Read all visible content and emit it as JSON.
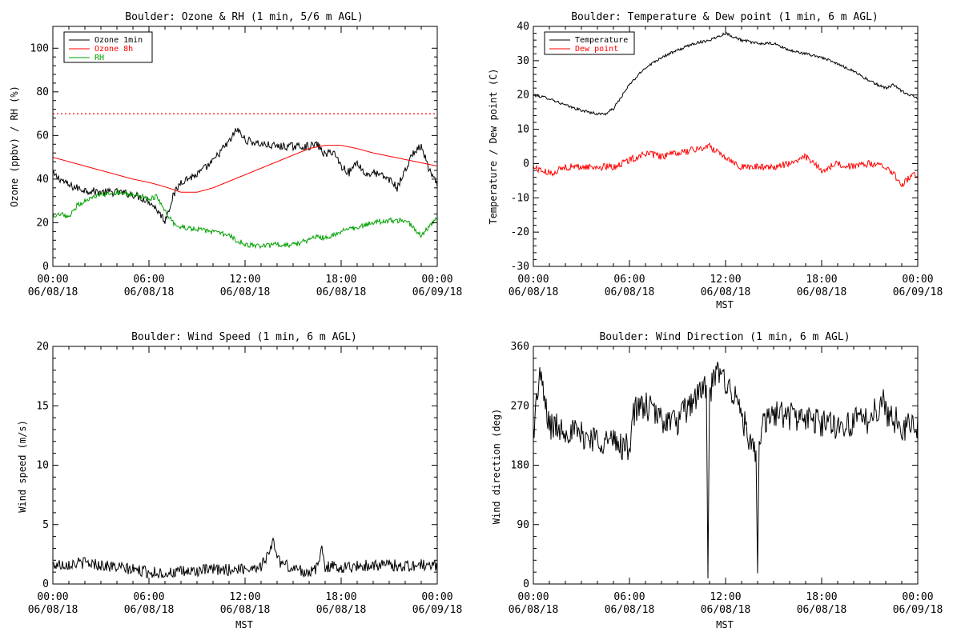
{
  "chart_data": [
    {
      "type": "line",
      "title": "Boulder: Ozone & RH (1 min, 5/6 m AGL)",
      "xlabel": "",
      "ylabel": "Ozone (ppbv) / RH (%)",
      "xlim": [
        "06/08/18 00:00",
        "06/09/18 00:00"
      ],
      "xticks": [
        {
          "time": "00:00",
          "date": "06/08/18"
        },
        {
          "time": "06:00",
          "date": "06/08/18"
        },
        {
          "time": "12:00",
          "date": "06/08/18"
        },
        {
          "time": "18:00",
          "date": "06/08/18"
        },
        {
          "time": "00:00",
          "date": "06/09/18"
        }
      ],
      "ylim": [
        0,
        110
      ],
      "yticks": [
        0,
        20,
        40,
        60,
        80,
        100
      ],
      "legend": "top-left",
      "reference_lines": [
        {
          "y": 70,
          "color": "#ff0000",
          "style": "dotted"
        }
      ],
      "series": [
        {
          "name": "Ozone 1min",
          "color": "#000000",
          "noise": 1.8,
          "x": [
            0,
            0.5,
            1,
            2,
            3,
            4,
            5,
            6,
            6.5,
            7,
            7.5,
            8,
            9,
            10,
            10.5,
            11,
            11.5,
            12,
            12.5,
            13,
            14,
            15,
            16,
            16.5,
            17,
            17.5,
            18,
            18.5,
            19,
            19.5,
            20,
            21,
            21.5,
            22,
            22.5,
            23,
            23.5,
            24
          ],
          "values": [
            42,
            40,
            37,
            35,
            34,
            34,
            33,
            30,
            26,
            21,
            32,
            39,
            42,
            48,
            53,
            57,
            63,
            58,
            57,
            56,
            55,
            55,
            55,
            56,
            51,
            53,
            46,
            43,
            48,
            42,
            43,
            40,
            36,
            44,
            52,
            55,
            44,
            37
          ]
        },
        {
          "name": "Ozone 8h",
          "color": "#ff0000",
          "noise": 0,
          "x": [
            0,
            1,
            2,
            3,
            4,
            5,
            6,
            7,
            8,
            9,
            10,
            11,
            12,
            13,
            14,
            15,
            16,
            17,
            18,
            19,
            20,
            21,
            22,
            23,
            24
          ],
          "values": [
            50,
            48,
            46,
            44,
            42,
            40,
            38.5,
            36.5,
            34,
            34,
            36,
            39,
            42,
            45,
            48,
            51,
            54,
            55.5,
            55.5,
            54,
            52,
            50.5,
            49,
            47.5,
            46
          ]
        },
        {
          "name": "RH",
          "color": "#00a000",
          "noise": 1.2,
          "x": [
            0,
            0.5,
            1,
            1.5,
            2,
            3,
            4,
            5,
            6,
            6.5,
            7,
            7.5,
            8,
            9,
            10,
            11,
            12,
            13,
            14,
            15,
            16,
            16.5,
            17,
            18,
            19,
            20,
            21,
            22,
            22.5,
            23,
            23.5,
            24
          ],
          "values": [
            22,
            24,
            22,
            28,
            30,
            33,
            34,
            33,
            31,
            32,
            25,
            20,
            18,
            17,
            16,
            14,
            10,
            9,
            10,
            10,
            12,
            14,
            13,
            16,
            18,
            20,
            21,
            21,
            18,
            14,
            18,
            22
          ]
        }
      ]
    },
    {
      "type": "line",
      "title": "Boulder: Temperature & Dew point (1 min, 6 m AGL)",
      "xlabel": "MST",
      "ylabel": "Temperature / Dew point (C)",
      "xlim": [
        "06/08/18 00:00",
        "06/09/18 00:00"
      ],
      "xticks": [
        {
          "time": "00:00",
          "date": "06/08/18"
        },
        {
          "time": "06:00",
          "date": "06/08/18"
        },
        {
          "time": "12:00",
          "date": "06/08/18"
        },
        {
          "time": "18:00",
          "date": "06/08/18"
        },
        {
          "time": "00:00",
          "date": "06/09/18"
        }
      ],
      "ylim": [
        -30,
        40
      ],
      "yticks": [
        -30,
        -20,
        -10,
        0,
        10,
        20,
        30,
        40
      ],
      "legend": "top-left",
      "series": [
        {
          "name": "Temperature",
          "color": "#000000",
          "noise": 0.4,
          "x": [
            0,
            0.5,
            1,
            2,
            3,
            4,
            4.5,
            5,
            6,
            7,
            8,
            9,
            10,
            11,
            12,
            12.5,
            13,
            14,
            15,
            16,
            17,
            18,
            19,
            20,
            21,
            22,
            22.5,
            23,
            24
          ],
          "values": [
            20,
            19.5,
            19,
            17,
            15.5,
            14.5,
            14.5,
            16,
            23,
            28,
            31,
            33,
            35,
            36,
            38,
            37,
            36,
            35,
            35,
            33,
            32,
            31,
            29,
            27,
            24,
            22,
            23,
            21,
            19
          ]
        },
        {
          "name": "Dew point",
          "color": "#ff0000",
          "noise": 1.0,
          "x": [
            0,
            0.5,
            1,
            2,
            3,
            4,
            5,
            6,
            7,
            8,
            9,
            10,
            11,
            12,
            13,
            14,
            15,
            16,
            17,
            18,
            19,
            20,
            21,
            22,
            22.5,
            23,
            23.5,
            24
          ],
          "values": [
            -1,
            -2,
            -3,
            -1,
            -1,
            -1,
            -1,
            1,
            3,
            2,
            3,
            4,
            5,
            2,
            -1,
            -1,
            -1,
            0,
            2,
            -2,
            0,
            -1,
            0,
            -1,
            -3,
            -6,
            -4,
            -3
          ]
        }
      ]
    },
    {
      "type": "line",
      "title": "Boulder: Wind Speed (1 min, 6 m AGL)",
      "xlabel": "MST",
      "ylabel": "Wind speed (m/s)",
      "xlim": [
        "06/08/18 00:00",
        "06/09/18 00:00"
      ],
      "xticks": [
        {
          "time": "00:00",
          "date": "06/08/18"
        },
        {
          "time": "06:00",
          "date": "06/08/18"
        },
        {
          "time": "12:00",
          "date": "06/08/18"
        },
        {
          "time": "18:00",
          "date": "06/08/18"
        },
        {
          "time": "00:00",
          "date": "06/09/18"
        }
      ],
      "ylim": [
        0,
        20
      ],
      "yticks": [
        0,
        5,
        10,
        15,
        20
      ],
      "legend": "none",
      "series": [
        {
          "color": "#000000",
          "noise": 0.5,
          "x": [
            0,
            1,
            2,
            3,
            4,
            5,
            6,
            7,
            8,
            9,
            10,
            11,
            12,
            13,
            13.8,
            14,
            14.2,
            15,
            16,
            16.5,
            16.8,
            17,
            18,
            19,
            20,
            21,
            22,
            23,
            24
          ],
          "values": [
            1.6,
            1.7,
            1.8,
            1.6,
            1.4,
            1.2,
            1.0,
            0.9,
            1.0,
            1.1,
            1.2,
            1.2,
            1.3,
            1.5,
            3.5,
            2.5,
            1.8,
            1.3,
            1.0,
            1.3,
            3.0,
            1.5,
            1.4,
            1.5,
            1.6,
            1.6,
            1.5,
            1.6,
            1.5
          ]
        }
      ]
    },
    {
      "type": "line",
      "title": "Boulder: Wind Direction (1 min, 6 m AGL)",
      "xlabel": "MST",
      "ylabel": "Wind direction (deg)",
      "xlim": [
        "06/08/18 00:00",
        "06/09/18 00:00"
      ],
      "xticks": [
        {
          "time": "00:00",
          "date": "06/08/18"
        },
        {
          "time": "06:00",
          "date": "06/08/18"
        },
        {
          "time": "12:00",
          "date": "06/08/18"
        },
        {
          "time": "18:00",
          "date": "06/08/18"
        },
        {
          "time": "00:00",
          "date": "06/09/18"
        }
      ],
      "ylim": [
        0,
        360
      ],
      "yticks": [
        0,
        90,
        180,
        270,
        360
      ],
      "legend": "none",
      "series": [
        {
          "color": "#000000",
          "noise": 22,
          "x": [
            0,
            0.4,
            0.6,
            1,
            2,
            3,
            4,
            5,
            6,
            6.2,
            7,
            8,
            9,
            10,
            10.8,
            10.9,
            11,
            11.5,
            12,
            13,
            13.5,
            13.9,
            14,
            14.1,
            15,
            16,
            17,
            18,
            19,
            20,
            21,
            21.8,
            22,
            23,
            24
          ],
          "values": [
            230,
            320,
            290,
            240,
            235,
            225,
            220,
            215,
            205,
            260,
            270,
            250,
            245,
            280,
            300,
            0,
            290,
            320,
            310,
            260,
            210,
            190,
            0,
            230,
            260,
            255,
            250,
            245,
            240,
            245,
            250,
            280,
            260,
            240,
            235
          ]
        }
      ]
    }
  ]
}
